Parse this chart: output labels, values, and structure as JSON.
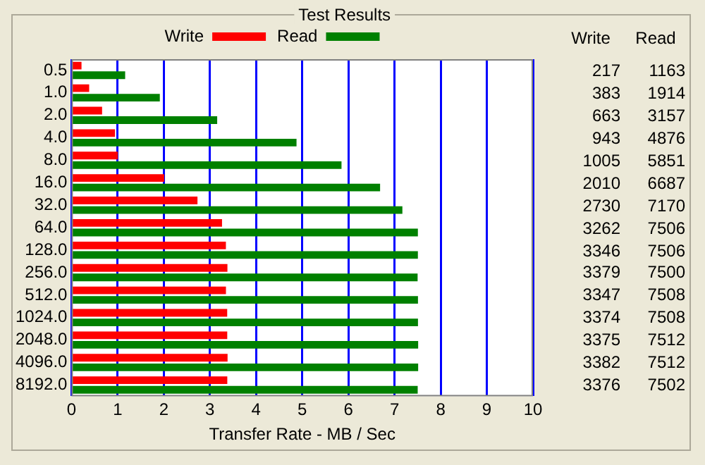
{
  "chart_data": [
    {
      "type": "bar",
      "orientation": "horizontal",
      "title": "Test Results",
      "xlabel": "Transfer Rate - MB / Sec",
      "categories": [
        "0.5",
        "1.0",
        "2.0",
        "4.0",
        "8.0",
        "16.0",
        "32.0",
        "64.0",
        "128.0",
        "256.0",
        "512.0",
        "1024.0",
        "2048.0",
        "4096.0",
        "8192.0"
      ],
      "series": [
        {
          "name": "Write",
          "color": "#ff0000",
          "values": [
            0.217,
            0.383,
            0.663,
            0.943,
            1.005,
            2.01,
            2.73,
            3.262,
            3.346,
            3.379,
            3.347,
            3.374,
            3.375,
            3.382,
            3.376
          ]
        },
        {
          "name": "Read",
          "color": "#008000",
          "values": [
            1.163,
            1.914,
            3.157,
            4.876,
            5.851,
            6.687,
            7.17,
            7.506,
            7.506,
            7.5,
            7.508,
            7.508,
            7.512,
            7.512,
            7.502
          ]
        }
      ],
      "xlim": [
        0,
        10
      ],
      "xticks": [
        0,
        1,
        2,
        3,
        4,
        5,
        6,
        7,
        8,
        9,
        10
      ],
      "grid": "x",
      "legend": "top"
    },
    {
      "type": "other",
      "annotations": [
        "Write",
        "Read",
        "217",
        "1163",
        "383",
        "1914",
        "663",
        "3157",
        "943",
        "4876",
        "1005",
        "5851",
        "2010",
        "6687",
        "2730",
        "7170",
        "3262",
        "7506",
        "3346",
        "7506",
        "3379",
        "7500",
        "3347",
        "7508",
        "3374",
        "7508",
        "3375",
        "7512",
        "3382",
        "7512",
        "3376",
        "7502"
      ]
    }
  ]
}
